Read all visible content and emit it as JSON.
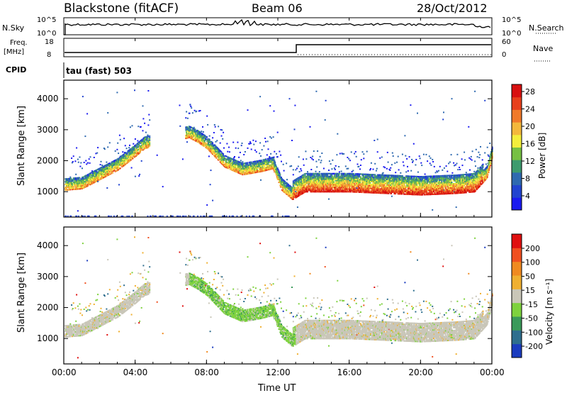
{
  "header": {
    "station": "Blackstone (fitACF)",
    "beam": "Beam 06",
    "date": "28/Oct/2012"
  },
  "top_panels": {
    "nsky_label": "N.Sky",
    "nsearch_label": "N.Search",
    "nsky_ticks": [
      "10^5",
      "10^0"
    ],
    "nsearch_ticks": [
      "10^5",
      "10^0"
    ],
    "freq_label_1": "Freq.",
    "freq_label_2": "[MHz]",
    "freq_ticks": [
      "18",
      "8"
    ],
    "nave_label": "Nave",
    "nave_ticks": [
      "60",
      "0"
    ],
    "cpid_label": "CPID",
    "cpid_text": "tau (fast) 503"
  },
  "chart_data": [
    {
      "type": "heatmap",
      "title": "",
      "xlabel": "Time UT",
      "ylabel": "Slant Range [km]",
      "x_ticks": [
        "00:00",
        "04:00",
        "08:00",
        "12:00",
        "16:00",
        "20:00",
        "00:00"
      ],
      "x_range_hours": [
        0,
        24
      ],
      "y_ticks": [
        1000,
        2000,
        3000,
        4000
      ],
      "ylim": [
        180,
        4600
      ],
      "colorbar": {
        "label": "Power [dB]",
        "ticks": [
          "4",
          "8",
          "12",
          "16",
          "20",
          "24",
          "28"
        ],
        "colors": [
          "#1b1bf0",
          "#2244d0",
          "#2f6ab0",
          "#3d9b6e",
          "#76c043",
          "#f3ee3c",
          "#f3b83c",
          "#f07a2a",
          "#e8401c",
          "#d81010"
        ]
      },
      "echo_band_range_km": [
        [
          0.0,
          1150
        ],
        [
          1.0,
          1200
        ],
        [
          2.0,
          1500
        ],
        [
          3.0,
          1800
        ],
        [
          4.0,
          2250
        ],
        [
          4.5,
          2500
        ],
        [
          7.0,
          2850
        ],
        [
          7.5,
          2700
        ],
        [
          8.0,
          2500
        ],
        [
          9.0,
          1900
        ],
        [
          10.0,
          1650
        ],
        [
          11.0,
          1750
        ],
        [
          11.7,
          1850
        ],
        [
          12.2,
          1150
        ],
        [
          12.8,
          850
        ],
        [
          13.5,
          1100
        ],
        [
          16.0,
          1100
        ],
        [
          20.0,
          1000
        ],
        [
          22.0,
          1050
        ],
        [
          23.0,
          1100
        ],
        [
          23.7,
          1550
        ],
        [
          24.0,
          2200
        ]
      ]
    },
    {
      "type": "heatmap",
      "title": "",
      "xlabel": "Time UT",
      "ylabel": "Slant Range [km]",
      "x_ticks": [
        "00:00",
        "04:00",
        "08:00",
        "12:00",
        "16:00",
        "20:00",
        "00:00"
      ],
      "x_range_hours": [
        0,
        24
      ],
      "y_ticks": [
        1000,
        2000,
        3000,
        4000
      ],
      "ylim": [
        180,
        4600
      ],
      "colorbar": {
        "label": "Velocity [m s⁻¹]",
        "ticks": [
          "200",
          "100",
          "50",
          "15",
          "-15",
          "-50",
          "-100",
          "-200"
        ],
        "colors": [
          "#1b3cbf",
          "#2e6e8e",
          "#3a9a5a",
          "#7ed23e",
          "#c9c6b8",
          "#f0b030",
          "#f08a20",
          "#f05020",
          "#e01010"
        ]
      }
    }
  ]
}
